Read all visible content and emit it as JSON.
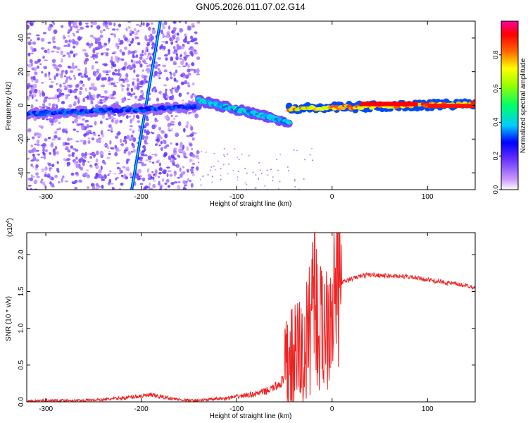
{
  "page": {
    "title": "GN05.2026.011.07.02.G14"
  },
  "chart_data": [
    {
      "type": "heatmap",
      "title": "GN05.2026.011.07.02.G14",
      "xlabel": "Height of straight line (km)",
      "ylabel": "Frequency (Hz)",
      "xlim": [
        -320,
        150
      ],
      "ylim": [
        -50,
        50
      ],
      "x_ticks": [
        -300,
        -200,
        -100,
        0,
        100
      ],
      "x_tick_labels": [
        "-300",
        "-200",
        "-100",
        "0",
        "100"
      ],
      "y_ticks": [
        -40,
        -20,
        0,
        20,
        40
      ],
      "y_tick_labels": [
        "-40",
        "-20",
        "0",
        "20",
        "40"
      ],
      "colorbar": {
        "label": "Normalized spectral amplitude",
        "range": [
          0,
          1
        ],
        "ticks": [
          0.0,
          0.2,
          0.4,
          0.6,
          0.8
        ],
        "tick_labels": [
          "0.0",
          "0.2",
          "0.4",
          "0.6",
          "0.8"
        ],
        "colors": [
          "#ffffff",
          "#9966ff",
          "#3333ff",
          "#00ccff",
          "#00ff66",
          "#ffff00",
          "#ff6600",
          "#ff0000",
          "#ff00ff"
        ]
      },
      "features": [
        {
          "kind": "noise-band",
          "x": [
            -320,
            -140
          ],
          "y": [
            -50,
            50
          ],
          "amplitude": 0.15
        },
        {
          "kind": "line",
          "x": [
            -210,
            -180
          ],
          "y": [
            -50,
            50
          ],
          "amplitude": 0.3
        },
        {
          "kind": "ridge",
          "x": [
            -320,
            -140
          ],
          "y": [
            -5,
            -1
          ],
          "amplitude": 0.35
        },
        {
          "kind": "ridge",
          "x": [
            -140,
            -45
          ],
          "y": [
            3,
            -10
          ],
          "amplitude": 0.45
        },
        {
          "kind": "ridge",
          "x": [
            -45,
            150
          ],
          "y": [
            -2,
            1
          ],
          "amplitude": 0.9
        }
      ]
    },
    {
      "type": "line",
      "title": "",
      "xlabel": "Height of straight line (km)",
      "ylabel": "SNR (10 * v/v)",
      "y_multiplier": "(x10",
      "y_multiplier_exp": "4",
      "xlim": [
        -320,
        150
      ],
      "ylim": [
        0,
        2.3
      ],
      "x_ticks": [
        -300,
        -200,
        -100,
        0,
        100
      ],
      "x_tick_labels": [
        "-300",
        "-200",
        "-100",
        "0",
        "100"
      ],
      "y_ticks": [
        0,
        0.5,
        1.0,
        1.5,
        2.0
      ],
      "y_tick_labels": [
        "0.0",
        "0.5",
        "1.0",
        "1.5",
        "2.0"
      ],
      "color": "#ee2222",
      "x": [
        -320,
        -300,
        -280,
        -260,
        -240,
        -220,
        -200,
        -190,
        -180,
        -170,
        -160,
        -150,
        -140,
        -130,
        -120,
        -110,
        -100,
        -90,
        -80,
        -70,
        -60,
        -50,
        -45,
        -40,
        -35,
        -30,
        -25,
        -22,
        -19,
        -16,
        -12,
        -8,
        -4,
        0,
        10,
        20,
        30,
        40,
        50,
        60,
        70,
        80,
        90,
        100,
        110,
        120,
        130,
        140,
        150
      ],
      "y": [
        0.01,
        0.02,
        0.02,
        0.02,
        0.03,
        0.05,
        0.08,
        0.09,
        0.07,
        0.05,
        0.03,
        0.02,
        0.02,
        0.03,
        0.04,
        0.05,
        0.07,
        0.09,
        0.11,
        0.14,
        0.2,
        0.3,
        0.6,
        0.5,
        0.75,
        0.55,
        0.9,
        1.2,
        2.0,
        1.1,
        0.95,
        1.05,
        1.2,
        1.45,
        1.62,
        1.67,
        1.71,
        1.73,
        1.72,
        1.71,
        1.71,
        1.7,
        1.68,
        1.66,
        1.64,
        1.62,
        1.6,
        1.58,
        1.56
      ]
    }
  ]
}
